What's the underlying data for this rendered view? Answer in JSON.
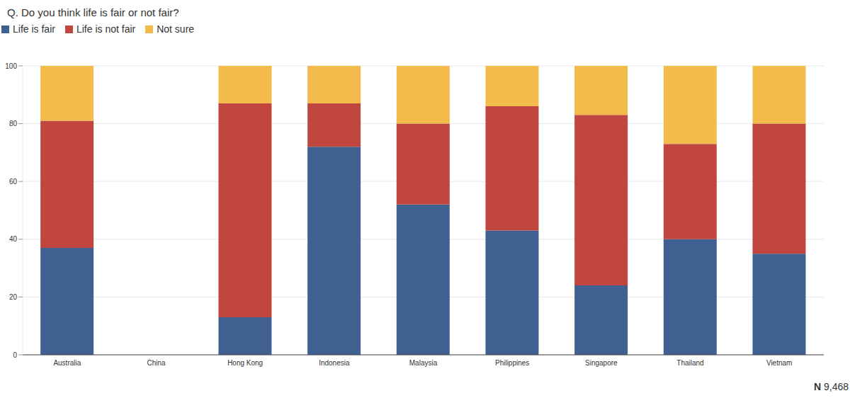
{
  "chart_data": {
    "type": "bar",
    "title": "Q. Do you think life is fair or not fair?",
    "categories": [
      "Australia",
      "China",
      "Hong Kong",
      "Indonesia",
      "Malaysia",
      "Philippines",
      "Singapore",
      "Thailand",
      "Vietnam"
    ],
    "series": [
      {
        "name": "Life is fair",
        "color": "#3f6090",
        "values": [
          37,
          null,
          13,
          72,
          52,
          43,
          24,
          40,
          35
        ]
      },
      {
        "name": "Life is not fair",
        "color": "#c0463f",
        "values": [
          44,
          null,
          74,
          15,
          28,
          43,
          59,
          33,
          45
        ]
      },
      {
        "name": "Not sure",
        "color": "#f2bb4b",
        "values": [
          19,
          null,
          13,
          13,
          20,
          14,
          17,
          27,
          20
        ]
      }
    ],
    "ylim": [
      0,
      100
    ],
    "yticks": [
      0,
      20,
      40,
      60,
      80,
      100
    ],
    "grid": true,
    "stacked": true,
    "legend": "top-left",
    "data_labels": false,
    "annotation": "N 9,468"
  }
}
